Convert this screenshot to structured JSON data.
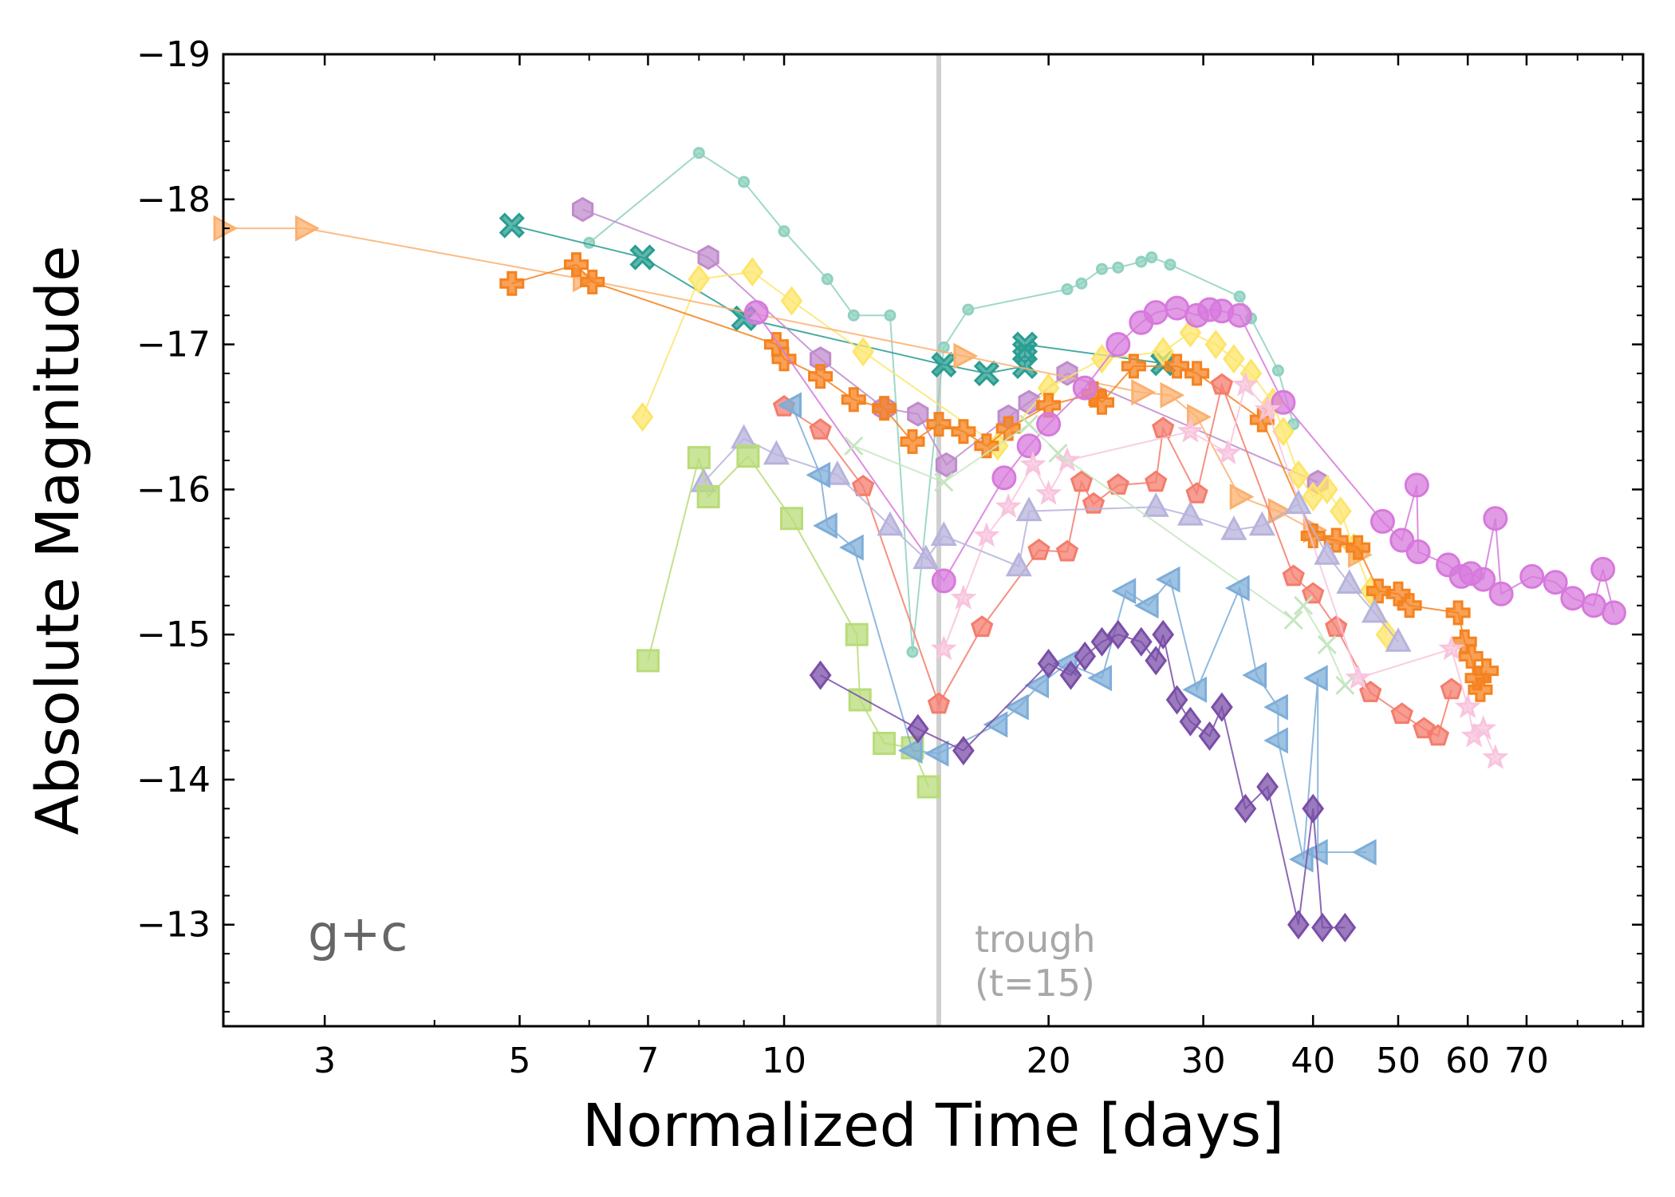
{
  "chart_data": {
    "type": "scatter",
    "xlabel": "Normalized Time [days]",
    "ylabel": "Absolute Magnitude",
    "xscale": "log",
    "xlim": [
      2.3,
      95
    ],
    "ylim": [
      -19,
      -12.3
    ],
    "y_inverted": true,
    "x_ticks": [
      3,
      5,
      7,
      10,
      20,
      30,
      40,
      50,
      60,
      70
    ],
    "y_ticks": [
      -19,
      -18,
      -17,
      -16,
      -15,
      -14,
      -13
    ],
    "y_tick_labels": [
      "−19",
      "−18",
      "−17",
      "−16",
      "−15",
      "−14",
      "−13"
    ],
    "band_label": "g+c",
    "trough": {
      "x": 15,
      "label_line1": "trough",
      "label_line2": "(t=15)",
      "color": "#d0d0d0"
    },
    "series": [
      {
        "marker": "circle-small",
        "color": "#8fd1bf",
        "points": [
          [
            6.0,
            -17.7
          ],
          [
            8.0,
            -18.32
          ],
          [
            9.0,
            -18.12
          ],
          [
            10.0,
            -17.78
          ],
          [
            11.2,
            -17.45
          ],
          [
            12.0,
            -17.2
          ],
          [
            13.2,
            -17.2
          ],
          [
            14.0,
            -14.88
          ],
          [
            15.2,
            -16.98
          ],
          [
            16.2,
            -17.24
          ],
          [
            21.0,
            -17.38
          ],
          [
            21.8,
            -17.42
          ],
          [
            23.0,
            -17.52
          ],
          [
            24.0,
            -17.53
          ],
          [
            25.5,
            -17.57
          ],
          [
            26.2,
            -17.6
          ],
          [
            27.5,
            -17.55
          ],
          [
            33.0,
            -17.33
          ],
          [
            34.0,
            -17.18
          ],
          [
            36.5,
            -16.82
          ],
          [
            38.0,
            -16.45
          ]
        ]
      },
      {
        "marker": "x-thick",
        "color": "#2a9d92",
        "points": [
          [
            4.9,
            -17.82
          ],
          [
            6.9,
            -17.6
          ],
          [
            9.0,
            -17.18
          ],
          [
            15.2,
            -16.86
          ],
          [
            17.0,
            -16.8
          ],
          [
            18.8,
            -16.85
          ],
          [
            18.8,
            -16.95
          ],
          [
            18.8,
            -17.0
          ],
          [
            27.0,
            -16.87
          ]
        ]
      },
      {
        "marker": "hexagon",
        "color": "#c08bcc",
        "points": [
          [
            5.9,
            -17.93
          ],
          [
            8.2,
            -17.6
          ],
          [
            11.0,
            -16.9
          ],
          [
            13.0,
            -16.56
          ],
          [
            14.2,
            -16.52
          ],
          [
            15.3,
            -16.17
          ],
          [
            18.0,
            -16.5
          ],
          [
            19.0,
            -16.6
          ],
          [
            21.0,
            -16.8
          ],
          [
            40.5,
            -16.05
          ]
        ]
      },
      {
        "marker": "diamond",
        "color": "#fde56a",
        "points": [
          [
            6.9,
            -16.5
          ],
          [
            8.0,
            -17.45
          ],
          [
            9.2,
            -17.5
          ],
          [
            10.2,
            -17.3
          ],
          [
            12.3,
            -16.95
          ],
          [
            17.5,
            -16.3
          ],
          [
            20.0,
            -16.7
          ],
          [
            23.0,
            -16.9
          ],
          [
            27.0,
            -16.95
          ],
          [
            29.0,
            -17.08
          ],
          [
            31.0,
            -17.0
          ],
          [
            32.5,
            -16.9
          ],
          [
            34.0,
            -16.8
          ],
          [
            36.0,
            -16.6
          ],
          [
            37.0,
            -16.4
          ],
          [
            38.5,
            -16.1
          ],
          [
            40.0,
            -15.95
          ],
          [
            41.5,
            -16.0
          ],
          [
            43.0,
            -15.85
          ],
          [
            44.5,
            -15.6
          ],
          [
            46.5,
            -15.3
          ],
          [
            48.5,
            -15.0
          ]
        ]
      },
      {
        "marker": "triangle-right",
        "color": "#fbb06e",
        "points": [
          [
            2.3,
            -17.8
          ],
          [
            2.85,
            -17.8
          ],
          [
            5.9,
            -17.45
          ],
          [
            16.0,
            -16.92
          ],
          [
            25.5,
            -16.67
          ],
          [
            27.5,
            -16.65
          ],
          [
            29.5,
            -16.5
          ],
          [
            33.0,
            -15.95
          ],
          [
            36.5,
            -15.85
          ],
          [
            40.0,
            -15.72
          ],
          [
            45.0,
            -15.55
          ]
        ]
      },
      {
        "marker": "plus-thick",
        "color": "#f5821f",
        "points": [
          [
            4.9,
            -17.42
          ],
          [
            5.8,
            -17.55
          ],
          [
            6.05,
            -17.43
          ],
          [
            9.8,
            -17.0
          ],
          [
            10.0,
            -16.9
          ],
          [
            11.0,
            -16.78
          ],
          [
            12.0,
            -16.62
          ],
          [
            13.0,
            -16.56
          ],
          [
            14.0,
            -16.33
          ],
          [
            15.0,
            -16.45
          ],
          [
            16.0,
            -16.4
          ],
          [
            17.0,
            -16.3
          ],
          [
            18.0,
            -16.42
          ],
          [
            20.0,
            -16.58
          ],
          [
            22.5,
            -16.66
          ],
          [
            23.0,
            -16.6
          ],
          [
            25.0,
            -16.85
          ],
          [
            28.0,
            -16.85
          ],
          [
            29.5,
            -16.8
          ],
          [
            35.0,
            -16.48
          ],
          [
            40.0,
            -15.68
          ],
          [
            42.5,
            -15.65
          ],
          [
            45.0,
            -15.6
          ],
          [
            47.5,
            -15.3
          ],
          [
            50.0,
            -15.28
          ],
          [
            51.5,
            -15.2
          ],
          [
            58.5,
            -15.15
          ],
          [
            59.5,
            -14.95
          ],
          [
            60.5,
            -14.85
          ],
          [
            61.5,
            -14.7
          ],
          [
            62.0,
            -14.62
          ],
          [
            63.0,
            -14.75
          ]
        ]
      },
      {
        "marker": "circle",
        "color": "#d779dc",
        "points": [
          [
            9.3,
            -17.22
          ],
          [
            15.2,
            -15.37
          ],
          [
            17.8,
            -16.08
          ],
          [
            19.0,
            -16.3
          ],
          [
            20.0,
            -16.45
          ],
          [
            22.0,
            -16.7
          ],
          [
            24.0,
            -17.0
          ],
          [
            25.5,
            -17.15
          ],
          [
            26.5,
            -17.22
          ],
          [
            28.0,
            -17.25
          ],
          [
            29.5,
            -17.2
          ],
          [
            30.5,
            -17.24
          ],
          [
            31.5,
            -17.23
          ],
          [
            33.0,
            -17.2
          ],
          [
            37.0,
            -16.6
          ],
          [
            48.0,
            -15.78
          ],
          [
            50.5,
            -15.65
          ],
          [
            52.5,
            -16.03
          ],
          [
            52.7,
            -15.57
          ],
          [
            57.0,
            -15.48
          ],
          [
            59.0,
            -15.4
          ],
          [
            60.5,
            -15.42
          ],
          [
            62.5,
            -15.38
          ],
          [
            64.5,
            -15.8
          ],
          [
            65.5,
            -15.28
          ],
          [
            71.0,
            -15.4
          ],
          [
            75.5,
            -15.36
          ],
          [
            79.0,
            -15.25
          ],
          [
            83.5,
            -15.2
          ],
          [
            85.5,
            -15.45
          ],
          [
            88.0,
            -15.15
          ]
        ]
      },
      {
        "marker": "pentagon",
        "color": "#f47c6c",
        "points": [
          [
            10.0,
            -16.57
          ],
          [
            11.0,
            -16.41
          ],
          [
            12.3,
            -16.02
          ],
          [
            15.0,
            -14.52
          ],
          [
            16.8,
            -15.05
          ],
          [
            19.5,
            -15.58
          ],
          [
            21.0,
            -15.57
          ],
          [
            21.8,
            -16.05
          ],
          [
            22.5,
            -15.9
          ],
          [
            24.0,
            -16.03
          ],
          [
            26.5,
            -16.05
          ],
          [
            27.0,
            -16.42
          ],
          [
            29.5,
            -15.97
          ],
          [
            31.5,
            -16.72
          ],
          [
            38.0,
            -15.4
          ],
          [
            40.0,
            -15.28
          ],
          [
            42.5,
            -15.05
          ],
          [
            46.5,
            -14.6
          ],
          [
            50.5,
            -14.45
          ],
          [
            53.5,
            -14.35
          ],
          [
            55.5,
            -14.3
          ],
          [
            57.5,
            -14.62
          ]
        ]
      },
      {
        "marker": "star",
        "color": "#f8c4dd",
        "points": [
          [
            16.0,
            -15.25
          ],
          [
            15.2,
            -14.9
          ],
          [
            17.0,
            -15.68
          ],
          [
            18.0,
            -15.88
          ],
          [
            19.2,
            -16.17
          ],
          [
            20.0,
            -15.97
          ],
          [
            21.0,
            -16.2
          ],
          [
            29.0,
            -16.4
          ],
          [
            32.0,
            -16.25
          ],
          [
            33.5,
            -16.72
          ],
          [
            35.5,
            -16.55
          ],
          [
            45.0,
            -14.7
          ],
          [
            57.5,
            -14.9
          ],
          [
            60.0,
            -14.5
          ],
          [
            61.0,
            -14.3
          ],
          [
            62.5,
            -14.35
          ],
          [
            64.5,
            -14.15
          ]
        ]
      },
      {
        "marker": "triangle-up",
        "color": "#b7b3dc",
        "points": [
          [
            8.1,
            -16.05
          ],
          [
            9.0,
            -16.35
          ],
          [
            9.8,
            -16.24
          ],
          [
            11.5,
            -16.1
          ],
          [
            13.2,
            -15.75
          ],
          [
            14.5,
            -15.52
          ],
          [
            15.2,
            -15.68
          ],
          [
            18.5,
            -15.47
          ],
          [
            19.0,
            -15.85
          ],
          [
            26.5,
            -15.88
          ],
          [
            29.0,
            -15.82
          ],
          [
            32.5,
            -15.72
          ],
          [
            35.0,
            -15.75
          ],
          [
            38.5,
            -15.9
          ],
          [
            41.5,
            -15.55
          ],
          [
            44.0,
            -15.35
          ],
          [
            47.0,
            -15.15
          ],
          [
            50.0,
            -14.95
          ]
        ]
      },
      {
        "marker": "x-thin",
        "color": "#c6e6c0",
        "points": [
          [
            12.0,
            -16.3
          ],
          [
            15.2,
            -16.05
          ],
          [
            19.0,
            -16.45
          ],
          [
            20.5,
            -16.25
          ],
          [
            38.0,
            -15.1
          ],
          [
            39.0,
            -15.2
          ],
          [
            41.5,
            -14.93
          ],
          [
            43.5,
            -14.65
          ]
        ]
      },
      {
        "marker": "square",
        "color": "#b8dc78",
        "points": [
          [
            7.0,
            -14.82
          ],
          [
            8.0,
            -16.22
          ],
          [
            8.2,
            -15.95
          ],
          [
            9.1,
            -16.23
          ],
          [
            10.2,
            -15.8
          ],
          [
            12.1,
            -15.0
          ],
          [
            12.2,
            -14.55
          ],
          [
            13.0,
            -14.25
          ],
          [
            14.0,
            -14.22
          ],
          [
            14.6,
            -13.95
          ]
        ]
      },
      {
        "marker": "triangle-left",
        "color": "#7eadd8",
        "points": [
          [
            10.2,
            -16.58
          ],
          [
            11.0,
            -16.1
          ],
          [
            11.2,
            -15.75
          ],
          [
            12.0,
            -15.6
          ],
          [
            14.0,
            -14.2
          ],
          [
            15.0,
            -14.18
          ],
          [
            17.5,
            -14.38
          ],
          [
            18.5,
            -14.5
          ],
          [
            19.5,
            -14.65
          ],
          [
            21.0,
            -14.8
          ],
          [
            23.0,
            -14.7
          ],
          [
            24.5,
            -15.3
          ],
          [
            26.0,
            -15.2
          ],
          [
            27.5,
            -15.38
          ],
          [
            29.5,
            -14.62
          ],
          [
            33.0,
            -15.32
          ],
          [
            34.5,
            -14.72
          ],
          [
            36.5,
            -14.5
          ],
          [
            36.5,
            -14.27
          ],
          [
            39.0,
            -13.45
          ],
          [
            40.5,
            -14.7
          ],
          [
            40.5,
            -13.5
          ],
          [
            46.0,
            -13.5
          ]
        ]
      },
      {
        "marker": "diamond",
        "color": "#7a4ea7",
        "points": [
          [
            11.0,
            -14.72
          ],
          [
            14.2,
            -14.35
          ],
          [
            16.0,
            -14.2
          ],
          [
            20.0,
            -14.8
          ],
          [
            21.2,
            -14.72
          ],
          [
            22.0,
            -14.85
          ],
          [
            23.0,
            -14.95
          ],
          [
            24.0,
            -15.0
          ],
          [
            25.5,
            -14.95
          ],
          [
            26.5,
            -14.82
          ],
          [
            27.0,
            -15.0
          ],
          [
            28.0,
            -14.55
          ],
          [
            29.0,
            -14.4
          ],
          [
            30.5,
            -14.3
          ],
          [
            31.5,
            -14.5
          ],
          [
            33.5,
            -13.8
          ],
          [
            35.5,
            -13.95
          ],
          [
            38.5,
            -13.0
          ],
          [
            40.0,
            -13.8
          ],
          [
            41.0,
            -12.98
          ],
          [
            43.5,
            -12.98
          ]
        ]
      }
    ]
  }
}
